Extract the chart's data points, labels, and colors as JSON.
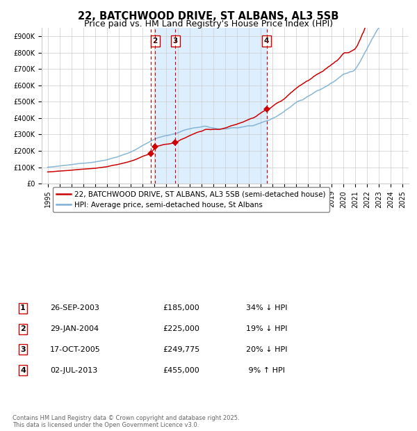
{
  "title": "22, BATCHWOOD DRIVE, ST ALBANS, AL3 5SB",
  "subtitle": "Price paid vs. HM Land Registry's House Price Index (HPI)",
  "legend_line1": "22, BATCHWOOD DRIVE, ST ALBANS, AL3 5SB (semi-detached house)",
  "legend_line2": "HPI: Average price, semi-detached house, St Albans",
  "footer1": "Contains HM Land Registry data © Crown copyright and database right 2025.",
  "footer2": "This data is licensed under the Open Government Licence v3.0.",
  "table": [
    {
      "num": "1",
      "date": "26-SEP-2003",
      "price": "£185,000",
      "pct": "34% ↓ HPI"
    },
    {
      "num": "2",
      "date": "29-JAN-2004",
      "price": "£225,000",
      "pct": "19% ↓ HPI"
    },
    {
      "num": "3",
      "date": "17-OCT-2005",
      "price": "£249,775",
      "pct": "20% ↓ HPI"
    },
    {
      "num": "4",
      "date": "02-JUL-2013",
      "price": "£455,000",
      "pct": " 9% ↑ HPI"
    }
  ],
  "t_years": [
    2003.73,
    2004.08,
    2005.79,
    2013.5
  ],
  "t_prices": [
    185000,
    225000,
    249775,
    455000
  ],
  "shaded_region": [
    2004.08,
    2013.5
  ],
  "box_labels": {
    "2": 2004.08,
    "3": 2005.79,
    "4": 2013.5
  },
  "ylim": [
    0,
    950000
  ],
  "yticks": [
    0,
    100000,
    200000,
    300000,
    400000,
    500000,
    600000,
    700000,
    800000,
    900000
  ],
  "ytick_labels": [
    "£0",
    "£100K",
    "£200K",
    "£300K",
    "£400K",
    "£500K",
    "£600K",
    "£700K",
    "£800K",
    "£900K"
  ],
  "xlim": [
    1994.5,
    2025.5
  ],
  "red_color": "#cc0000",
  "blue_color": "#7bafd4",
  "shade_color": "#ddeeff",
  "grid_color": "#cccccc",
  "background_color": "#ffffff",
  "title_fontsize": 10.5,
  "subtitle_fontsize": 9,
  "tick_fontsize": 7,
  "legend_fontsize": 7.5,
  "table_fontsize": 8,
  "footer_fontsize": 6
}
